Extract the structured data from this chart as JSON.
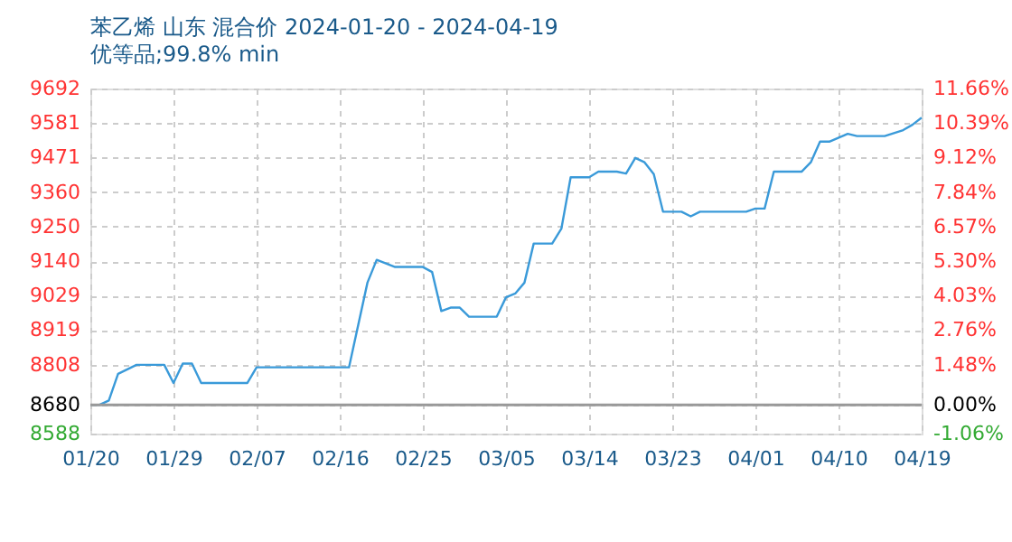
{
  "chart_data": {
    "type": "line",
    "title": "苯乙烯 山东 混合价 2024-01-20 - 2024-04-19",
    "subtitle": "优等品;99.8% min",
    "x": [
      "2024-01-20",
      "2024-01-21",
      "2024-01-22",
      "2024-01-23",
      "2024-01-25",
      "2024-01-28",
      "2024-01-29",
      "2024-01-30",
      "2024-01-31",
      "2024-02-01",
      "2024-02-06",
      "2024-02-07",
      "2024-02-17",
      "2024-02-19",
      "2024-02-20",
      "2024-02-22",
      "2024-02-25",
      "2024-02-26",
      "2024-02-27",
      "2024-02-28",
      "2024-02-29",
      "2024-03-01",
      "2024-03-04",
      "2024-03-05",
      "2024-03-06",
      "2024-03-07",
      "2024-03-08",
      "2024-03-10",
      "2024-03-11",
      "2024-03-12",
      "2024-03-14",
      "2024-03-15",
      "2024-03-17",
      "2024-03-18",
      "2024-03-19",
      "2024-03-20",
      "2024-03-21",
      "2024-03-22",
      "2024-03-24",
      "2024-03-25",
      "2024-03-26",
      "2024-03-31",
      "2024-04-01",
      "2024-04-02",
      "2024-04-03",
      "2024-04-06",
      "2024-04-07",
      "2024-04-08",
      "2024-04-09",
      "2024-04-11",
      "2024-04-12",
      "2024-04-15",
      "2024-04-17",
      "2024-04-18",
      "2024-04-19"
    ],
    "series": [
      {
        "color": "#3a9ad9",
        "values": [
          8680,
          8680,
          8694,
          8779,
          8808,
          8808,
          8750,
          8812,
          8812,
          8750,
          8750,
          8800,
          8800,
          9071,
          9144,
          9121,
          9121,
          9105,
          8980,
          8991,
          8991,
          8962,
          8962,
          9024,
          9036,
          9071,
          9196,
          9196,
          9244,
          9408,
          9408,
          9426,
          9426,
          9420,
          9470,
          9456,
          9418,
          9298,
          9298,
          9283,
          9298,
          9298,
          9308,
          9308,
          9426,
          9426,
          9456,
          9522,
          9522,
          9547,
          9540,
          9540,
          9559,
          9576,
          9599
        ]
      }
    ],
    "xlim": [
      "2024-01-20",
      "2024-04-19"
    ],
    "xticks": [
      {
        "value": "2024-01-20",
        "label": "01/20"
      },
      {
        "value": "2024-01-29",
        "label": "01/29"
      },
      {
        "value": "2024-02-07",
        "label": "02/07"
      },
      {
        "value": "2024-02-16",
        "label": "02/16"
      },
      {
        "value": "2024-02-25",
        "label": "02/25"
      },
      {
        "value": "2024-03-05",
        "label": "03/05"
      },
      {
        "value": "2024-03-14",
        "label": "03/14"
      },
      {
        "value": "2024-03-23",
        "label": "03/23"
      },
      {
        "value": "2024-04-01",
        "label": "04/01"
      },
      {
        "value": "2024-04-10",
        "label": "04/10"
      },
      {
        "value": "2024-04-19",
        "label": "04/19"
      }
    ],
    "ylim": [
      8588,
      9692
    ],
    "yticks": [
      8588,
      8680,
      8808,
      8919,
      9029,
      9140,
      9250,
      9360,
      9471,
      9581,
      9692
    ],
    "y2lim": [
      -1.06,
      11.66
    ],
    "y2ticks": [
      {
        "value": -1.06,
        "label": "-1.06%"
      },
      {
        "value": 0,
        "label": "0.00%"
      },
      {
        "value": 1.48,
        "label": "1.48%"
      },
      {
        "value": 2.76,
        "label": "2.76%"
      },
      {
        "value": 4.03,
        "label": "4.03%"
      },
      {
        "value": 5.3,
        "label": "5.30%"
      },
      {
        "value": 6.57,
        "label": "6.57%"
      },
      {
        "value": 7.84,
        "label": "7.84%"
      },
      {
        "value": 9.12,
        "label": "9.12%"
      },
      {
        "value": 10.39,
        "label": "10.39%"
      },
      {
        "value": 11.66,
        "label": "11.66%"
      }
    ],
    "ref_lines": [
      {
        "axis": "y",
        "value": 8680,
        "color": "#999999"
      }
    ],
    "grid": true,
    "marker": "none",
    "line_style": "solid"
  }
}
